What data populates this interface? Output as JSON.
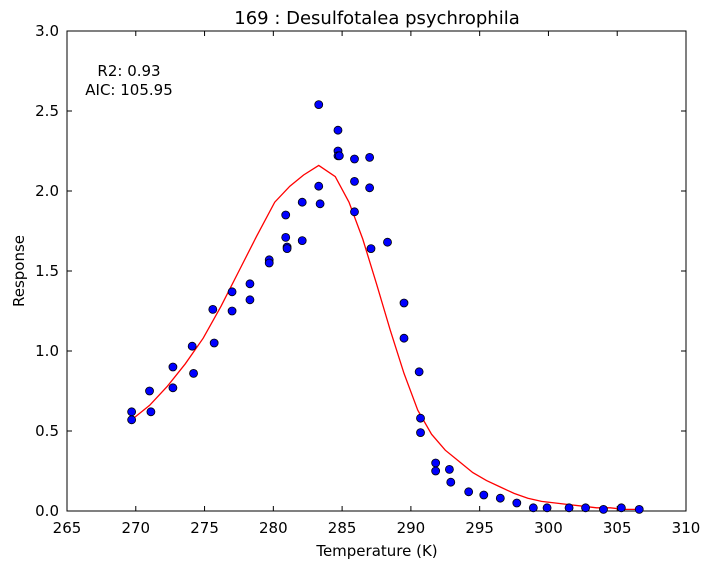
{
  "chart_data": {
    "type": "scatter",
    "title": "169 : Desulfotalea psychrophila",
    "xlabel": "Temperature (K)",
    "ylabel": "Response",
    "xlim": [
      265,
      310
    ],
    "ylim": [
      0.0,
      3.0
    ],
    "x_ticks": [
      265,
      270,
      275,
      280,
      285,
      290,
      295,
      300,
      305,
      310
    ],
    "y_ticks": [
      0.0,
      0.5,
      1.0,
      1.5,
      2.0,
      2.5,
      3.0
    ],
    "x_tick_labels": [
      "265",
      "270",
      "275",
      "280",
      "285",
      "290",
      "295",
      "300",
      "305",
      "310"
    ],
    "y_tick_labels": [
      "0.0",
      "0.5",
      "1.0",
      "1.5",
      "2.0",
      "2.5",
      "3.0"
    ],
    "grid": false,
    "annotations": [
      "R2: 0.93",
      "AIC: 105.95"
    ],
    "colors": {
      "points": "#0000ff",
      "fit": "#ff0000"
    },
    "series": [
      {
        "kind": "points",
        "x": [
          269.7,
          269.7,
          271.0,
          271.1,
          272.7,
          272.7,
          274.1,
          274.2,
          275.6,
          275.7,
          277.0,
          277.0,
          278.3,
          278.3,
          279.7,
          279.7,
          280.9,
          280.9,
          281.0,
          281.0,
          282.1,
          282.1,
          283.3,
          283.3,
          283.4,
          284.7,
          284.7,
          284.7,
          284.8,
          285.9,
          285.9,
          285.9,
          287.0,
          287.0,
          287.1,
          288.3,
          289.5,
          289.5,
          290.6,
          290.7,
          290.7,
          291.8,
          291.8,
          292.8,
          292.9,
          294.2,
          295.3,
          296.5,
          297.7,
          298.9,
          299.9,
          301.5,
          302.7,
          304.0,
          305.3,
          306.6
        ],
        "y": [
          0.62,
          0.57,
          0.75,
          0.62,
          0.9,
          0.77,
          1.03,
          0.86,
          1.26,
          1.05,
          1.37,
          1.25,
          1.42,
          1.32,
          1.57,
          1.55,
          1.85,
          1.71,
          1.65,
          1.64,
          1.93,
          1.69,
          2.54,
          2.03,
          1.92,
          2.38,
          2.25,
          2.22,
          2.22,
          2.2,
          2.06,
          1.87,
          2.21,
          2.02,
          1.64,
          1.68,
          1.3,
          1.08,
          0.87,
          0.58,
          0.49,
          0.3,
          0.25,
          0.26,
          0.18,
          0.12,
          0.1,
          0.08,
          0.05,
          0.02,
          0.02,
          0.02,
          0.02,
          0.01,
          0.02,
          0.01
        ]
      },
      {
        "kind": "fit-line",
        "x": [
          269.7,
          271.0,
          272.3,
          273.6,
          274.9,
          276.2,
          277.5,
          278.8,
          280.1,
          281.2,
          282.2,
          283.3,
          284.5,
          285.5,
          286.5,
          287.5,
          288.5,
          289.5,
          290.5,
          291.5,
          292.5,
          293.5,
          294.5,
          295.5,
          296.5,
          297.5,
          298.5,
          299.5,
          300.5,
          301.5,
          302.5,
          303.5,
          304.5,
          305.5,
          306.6
        ],
        "y": [
          0.57,
          0.66,
          0.78,
          0.92,
          1.08,
          1.28,
          1.5,
          1.72,
          1.93,
          2.03,
          2.1,
          2.16,
          2.09,
          1.93,
          1.7,
          1.42,
          1.13,
          0.86,
          0.63,
          0.48,
          0.38,
          0.31,
          0.24,
          0.19,
          0.15,
          0.11,
          0.08,
          0.06,
          0.05,
          0.04,
          0.03,
          0.02,
          0.02,
          0.01,
          0.01
        ]
      }
    ]
  }
}
